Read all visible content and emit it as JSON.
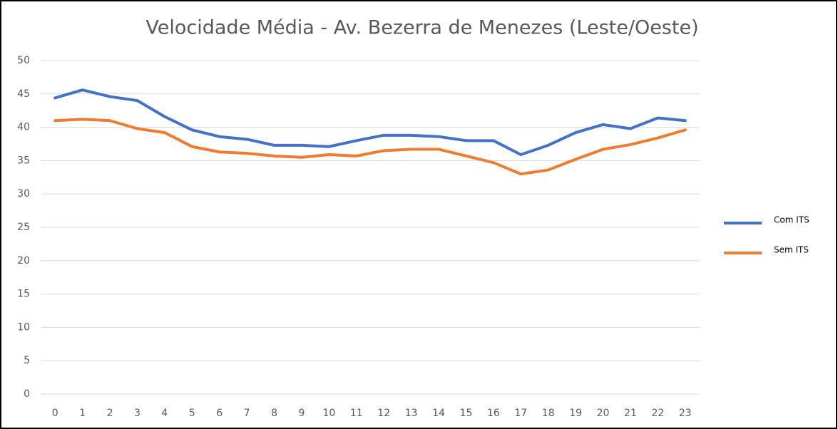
{
  "chart_data": {
    "type": "line",
    "title": "Velocidade Média - Av. Bezerra de Menezes (Leste/Oeste)",
    "categories": [
      "0",
      "1",
      "2",
      "3",
      "4",
      "5",
      "6",
      "7",
      "8",
      "9",
      "10",
      "11",
      "12",
      "13",
      "14",
      "15",
      "16",
      "17",
      "18",
      "19",
      "20",
      "21",
      "22",
      "23"
    ],
    "series": [
      {
        "name": "Com ITS",
        "color": "#4472c4",
        "values": [
          44.4,
          45.6,
          44.6,
          44.0,
          41.6,
          39.6,
          38.6,
          38.2,
          37.3,
          37.3,
          37.1,
          38.0,
          38.8,
          38.8,
          38.6,
          38.0,
          38.0,
          35.9,
          37.3,
          39.2,
          40.4,
          39.8,
          41.4,
          41.0
        ]
      },
      {
        "name": "Sem ITS",
        "color": "#ed7d31",
        "values": [
          41.0,
          41.2,
          41.0,
          39.8,
          39.2,
          37.1,
          36.3,
          36.1,
          35.7,
          35.5,
          35.9,
          35.7,
          36.5,
          36.7,
          36.7,
          35.7,
          34.7,
          33.0,
          33.6,
          35.2,
          36.7,
          37.4,
          38.4,
          39.6
        ]
      }
    ],
    "ylim": [
      0,
      50
    ],
    "yticks": [
      0,
      5,
      10,
      15,
      20,
      25,
      30,
      35,
      40,
      45,
      50
    ],
    "grid": true,
    "legend": "right"
  }
}
